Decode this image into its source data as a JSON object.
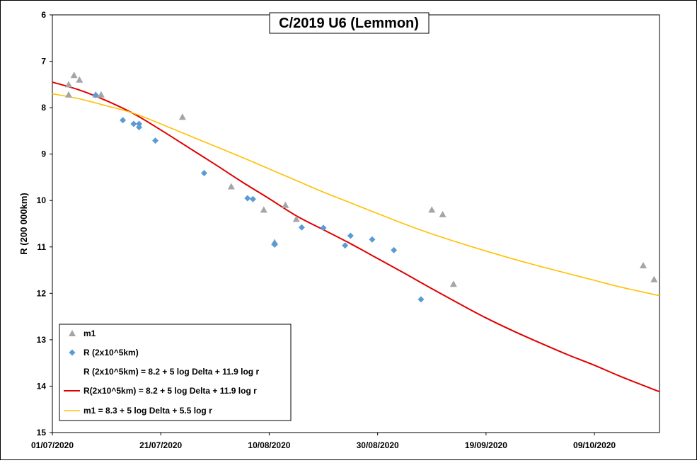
{
  "chart_data": {
    "type": "scatter",
    "title": "C/2019 U6 (Lemmon)",
    "xlabel": "",
    "ylabel": "R (200 000km)",
    "xlim": [
      "2020-07-01",
      "2020-10-21"
    ],
    "ylim": [
      6,
      15
    ],
    "y_inverted": true,
    "grid": false,
    "legend_position": "bottom-left",
    "x_ticks": [
      "01/07/2020",
      "21/07/2020",
      "10/08/2020",
      "30/08/2020",
      "19/09/2020",
      "09/10/2020"
    ],
    "y_ticks": [
      "6",
      "7",
      "8",
      "9",
      "10",
      "11",
      "12",
      "13",
      "14",
      "15"
    ],
    "legend": [
      {
        "label": "m1",
        "marker": "triangle",
        "color": "#a5a5a5"
      },
      {
        "label": "R (2x10^5km)",
        "marker": "diamond",
        "color": "#5b9bd5"
      },
      {
        "label": "R (2x10^5km) = 8.2 + 5 log Delta + 11.9 log r",
        "marker": "none",
        "color": "#ffffff"
      },
      {
        "label": "R(2x10^5km) = 8.2 + 5 log Delta + 11.9 log r",
        "marker": "line",
        "color": "#e00000"
      },
      {
        "label": "m1 = 8.3 + 5 log Delta + 5.5 log r",
        "marker": "line",
        "color": "#ffc000"
      }
    ],
    "series": [
      {
        "name": "m1",
        "kind": "scatter",
        "marker": "triangle",
        "color": "#a5a5a5",
        "points": [
          [
            "2020-07-04",
            7.72
          ],
          [
            "2020-07-04",
            7.5
          ],
          [
            "2020-07-05",
            7.3
          ],
          [
            "2020-07-06",
            7.4
          ],
          [
            "2020-07-09",
            7.72
          ],
          [
            "2020-07-10",
            7.72
          ],
          [
            "2020-07-25",
            8.2
          ],
          [
            "2020-08-03",
            9.7
          ],
          [
            "2020-08-09",
            10.2
          ],
          [
            "2020-08-11",
            10.9
          ],
          [
            "2020-08-13",
            10.1
          ],
          [
            "2020-08-15",
            10.4
          ],
          [
            "2020-09-09",
            10.2
          ],
          [
            "2020-09-11",
            10.3
          ],
          [
            "2020-09-13",
            11.8
          ],
          [
            "2020-10-18",
            11.4
          ],
          [
            "2020-10-20",
            11.7
          ]
        ]
      },
      {
        "name": "R (2x10^5km)",
        "kind": "scatter",
        "marker": "diamond",
        "color": "#5b9bd5",
        "points": [
          [
            "2020-07-09",
            7.73
          ],
          [
            "2020-07-14",
            8.27
          ],
          [
            "2020-07-16",
            8.35
          ],
          [
            "2020-07-17",
            8.35
          ],
          [
            "2020-07-17",
            8.42
          ],
          [
            "2020-07-20",
            8.71
          ],
          [
            "2020-07-29",
            9.41
          ],
          [
            "2020-08-06",
            9.95
          ],
          [
            "2020-08-07",
            9.97
          ],
          [
            "2020-08-11",
            10.93
          ],
          [
            "2020-08-11",
            10.95
          ],
          [
            "2020-08-16",
            10.58
          ],
          [
            "2020-08-20",
            10.59
          ],
          [
            "2020-08-24",
            10.97
          ],
          [
            "2020-08-25",
            10.76
          ],
          [
            "2020-08-29",
            10.84
          ],
          [
            "2020-09-02",
            11.07
          ],
          [
            "2020-09-07",
            12.13
          ]
        ]
      },
      {
        "name": "R(2x10^5km) = 8.2 + 5 log Delta + 11.9 log r",
        "kind": "line",
        "color": "#e00000",
        "points": [
          [
            "2020-07-01",
            7.45
          ],
          [
            "2020-07-06",
            7.62
          ],
          [
            "2020-07-11",
            7.85
          ],
          [
            "2020-07-16",
            8.13
          ],
          [
            "2020-07-21",
            8.48
          ],
          [
            "2020-07-26",
            8.85
          ],
          [
            "2020-07-31",
            9.22
          ],
          [
            "2020-08-05",
            9.6
          ],
          [
            "2020-08-10",
            9.96
          ],
          [
            "2020-08-15",
            10.33
          ],
          [
            "2020-08-20",
            10.63
          ],
          [
            "2020-08-25",
            10.93
          ],
          [
            "2020-08-30",
            11.25
          ],
          [
            "2020-09-04",
            11.57
          ],
          [
            "2020-09-09",
            11.9
          ],
          [
            "2020-09-14",
            12.22
          ],
          [
            "2020-09-19",
            12.53
          ],
          [
            "2020-09-24",
            12.81
          ],
          [
            "2020-09-29",
            13.07
          ],
          [
            "2020-10-04",
            13.32
          ],
          [
            "2020-10-09",
            13.55
          ],
          [
            "2020-10-14",
            13.8
          ],
          [
            "2020-10-21",
            14.12
          ]
        ]
      },
      {
        "name": "m1 = 8.3 + 5 log Delta + 5.5 log r",
        "kind": "line",
        "color": "#ffc000",
        "points": [
          [
            "2020-07-01",
            7.7
          ],
          [
            "2020-07-06",
            7.81
          ],
          [
            "2020-07-11",
            7.96
          ],
          [
            "2020-07-16",
            8.12
          ],
          [
            "2020-07-21",
            8.35
          ],
          [
            "2020-07-26",
            8.59
          ],
          [
            "2020-07-31",
            8.83
          ],
          [
            "2020-08-05",
            9.07
          ],
          [
            "2020-08-10",
            9.32
          ],
          [
            "2020-08-15",
            9.57
          ],
          [
            "2020-08-20",
            9.82
          ],
          [
            "2020-08-25",
            10.05
          ],
          [
            "2020-08-30",
            10.28
          ],
          [
            "2020-09-04",
            10.51
          ],
          [
            "2020-09-09",
            10.72
          ],
          [
            "2020-09-14",
            10.91
          ],
          [
            "2020-09-19",
            11.09
          ],
          [
            "2020-09-24",
            11.26
          ],
          [
            "2020-09-29",
            11.42
          ],
          [
            "2020-10-04",
            11.57
          ],
          [
            "2020-10-09",
            11.72
          ],
          [
            "2020-10-14",
            11.87
          ],
          [
            "2020-10-21",
            12.05
          ]
        ]
      }
    ]
  }
}
